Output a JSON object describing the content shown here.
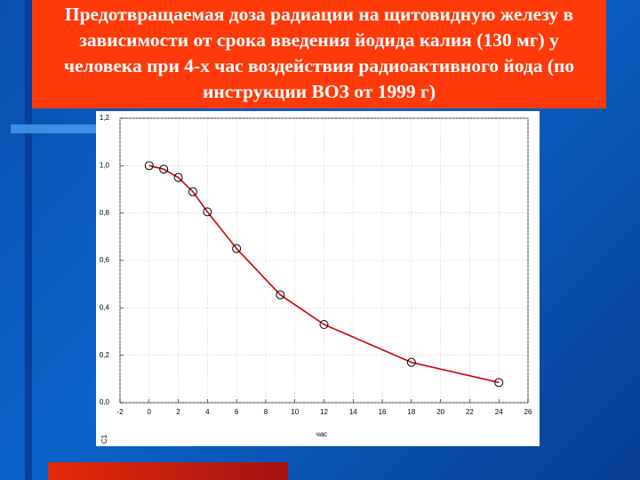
{
  "chart_data": {
    "type": "line",
    "title": [
      "Предотвращаемая доза радиации на щитовидную железу в",
      "зависимости от срока введения йодида калия (130 мг) у",
      "человека при 4-х час воздействия радиоактивного йода (по",
      "инструкции ВОЗ от 1999 г)"
    ],
    "x_label": "час",
    "corner_label": "C1",
    "x": [
      0,
      1,
      2,
      3,
      4,
      6,
      9,
      12,
      18,
      24
    ],
    "series": [
      {
        "color": "#cc0000",
        "values": [
          1.0,
          0.985,
          0.95,
          0.89,
          0.805,
          0.65,
          0.455,
          0.33,
          0.17,
          0.085
        ]
      }
    ],
    "xlim": [
      -2,
      26
    ],
    "xticks": [
      -2,
      0,
      2,
      4,
      6,
      8,
      10,
      12,
      14,
      16,
      18,
      20,
      22,
      24,
      26
    ],
    "ylim": [
      0,
      1.2
    ],
    "yticks": [
      {
        "value": 0,
        "label": "0,0"
      },
      {
        "value": 0.2,
        "label": "0,2"
      },
      {
        "value": 0.4,
        "label": "0,4"
      },
      {
        "value": 0.6,
        "label": "0,6"
      },
      {
        "value": 0.8,
        "label": "0,8"
      },
      {
        "value": 1.0,
        "label": "1,0"
      },
      {
        "value": 1.2,
        "label": "1,2"
      }
    ],
    "grid": true
  }
}
